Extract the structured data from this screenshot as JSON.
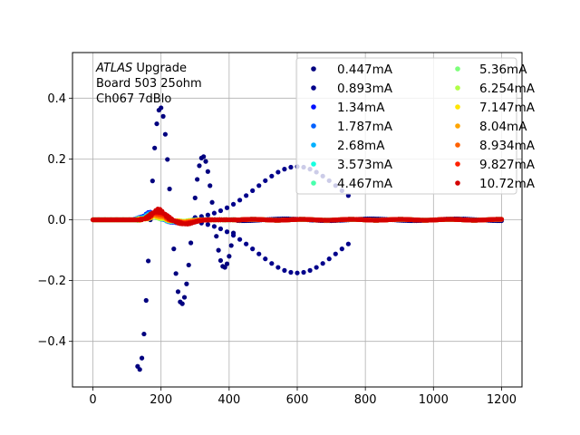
{
  "chart_data": {
    "type": "scatter",
    "title": "",
    "xlabel": "",
    "ylabel": "",
    "xlim": [
      -60,
      1260
    ],
    "ylim": [
      -0.55,
      0.55
    ],
    "xticks": [
      0,
      200,
      400,
      600,
      800,
      1000,
      1200
    ],
    "xtick_labels": [
      "0",
      "200",
      "400",
      "600",
      "800",
      "1000",
      "1200"
    ],
    "yticks": [
      -0.4,
      -0.2,
      0.0,
      0.2,
      0.4
    ],
    "ytick_labels": [
      "−0.4",
      "−0.2",
      "0.0",
      "0.2",
      "0.4"
    ],
    "grid": true,
    "legend_position": "top-right",
    "annotation": {
      "italic_part": "ATLAS",
      "rest_line1": " Upgrade",
      "line2": " Board 503 25ohm",
      "line3": " Ch067 7dBlo"
    },
    "series": [
      {
        "name": "0.447mA",
        "color": "#00007f",
        "shape": "oscillating",
        "amp": 0.5,
        "period": 125,
        "start": 130,
        "decay": 210,
        "crest": 200
      },
      {
        "name": "0.893mA",
        "color": "#00008b",
        "shape": "bipolar",
        "amp": 0.175,
        "center": 600,
        "width": 200,
        "start": 300,
        "end": 760
      },
      {
        "name": "1.34mA",
        "color": "#0010ff",
        "shape": "pulse",
        "amp": 0.02,
        "peak": 170
      },
      {
        "name": "1.787mA",
        "color": "#0060ff",
        "shape": "pulse",
        "amp": 0.018,
        "peak": 172
      },
      {
        "name": "2.68mA",
        "color": "#00b0ff",
        "shape": "pulse",
        "amp": 0.016,
        "peak": 174
      },
      {
        "name": "3.573mA",
        "color": "#16ffe0",
        "shape": "pulse",
        "amp": 0.014,
        "peak": 176
      },
      {
        "name": "4.467mA",
        "color": "#49ffad",
        "shape": "pulse",
        "amp": 0.012,
        "peak": 178
      },
      {
        "name": "5.36mA",
        "color": "#7dff7a",
        "shape": "pulse",
        "amp": 0.012,
        "peak": 180
      },
      {
        "name": "6.254mA",
        "color": "#b0ff46",
        "shape": "pulse",
        "amp": 0.012,
        "peak": 182
      },
      {
        "name": "7.147mA",
        "color": "#ffe500",
        "shape": "pulse",
        "amp": 0.014,
        "peak": 184
      },
      {
        "name": "8.04mA",
        "color": "#ffa400",
        "shape": "pulse",
        "amp": 0.016,
        "peak": 186
      },
      {
        "name": "8.934mA",
        "color": "#ff6100",
        "shape": "pulse",
        "amp": 0.02,
        "peak": 188
      },
      {
        "name": "9.827mA",
        "color": "#ff2000",
        "shape": "pulse",
        "amp": 0.025,
        "peak": 190
      },
      {
        "name": "10.72mA",
        "color": "#d40000",
        "shape": "pulse",
        "amp": 0.03,
        "peak": 192
      }
    ]
  }
}
